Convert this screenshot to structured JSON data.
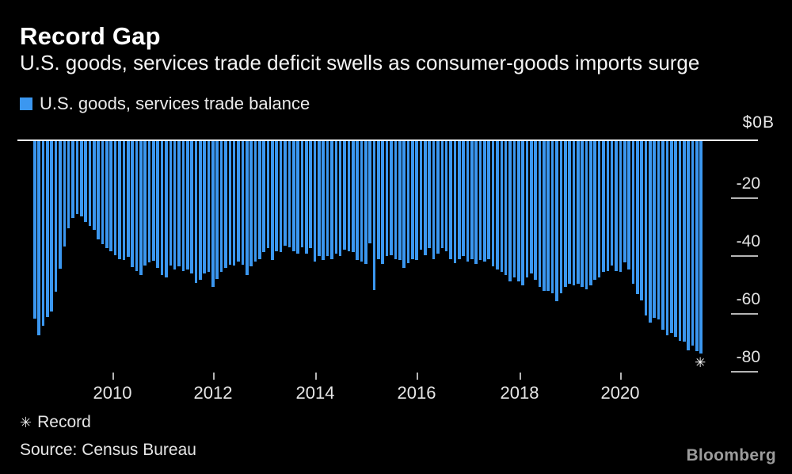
{
  "header": {
    "title": "Record Gap",
    "subtitle": "U.S. goods, services trade deficit swells as consumer-goods imports surge"
  },
  "legend": {
    "label": "U.S. goods, services trade balance",
    "swatch_color": "#3B97F0"
  },
  "chart_data": {
    "type": "bar",
    "title": "Record Gap",
    "series_name": "U.S. goods, services trade balance",
    "unit": "$B",
    "frequency": "monthly",
    "x_start": "2008-07",
    "x_end": "2021-08",
    "values": [
      -61.3,
      -67.2,
      -63.9,
      -60.9,
      -58.9,
      -52.0,
      -44.0,
      -36.5,
      -30.0,
      -26.6,
      -25.3,
      -26.1,
      -27.9,
      -29.3,
      -30.7,
      -33.9,
      -35.7,
      -37.1,
      -38.0,
      -39.5,
      -40.7,
      -41.1,
      -40.0,
      -43.5,
      -44.8,
      -46.2,
      -43.0,
      -41.8,
      -41.4,
      -43.9,
      -46.2,
      -47.1,
      -43.0,
      -44.3,
      -43.4,
      -44.8,
      -44.4,
      -45.7,
      -48.9,
      -47.9,
      -45.7,
      -45.3,
      -50.3,
      -47.6,
      -45.3,
      -43.9,
      -42.6,
      -43.0,
      -41.6,
      -42.6,
      -46.2,
      -43.4,
      -41.6,
      -40.7,
      -38.4,
      -37.1,
      -41.2,
      -38.0,
      -38.4,
      -36.2,
      -36.6,
      -38.0,
      -38.9,
      -36.6,
      -38.9,
      -37.1,
      -41.6,
      -39.8,
      -41.2,
      -39.8,
      -40.7,
      -38.9,
      -39.8,
      -37.5,
      -38.0,
      -38.4,
      -41.2,
      -41.6,
      -42.5,
      -35.4,
      -51.4,
      -40.7,
      -42.5,
      -39.8,
      -39.4,
      -40.7,
      -41.2,
      -43.9,
      -42.1,
      -40.7,
      -41.2,
      -37.5,
      -39.4,
      -37.1,
      -40.7,
      -38.9,
      -37.1,
      -38.0,
      -40.7,
      -42.1,
      -40.7,
      -39.8,
      -41.6,
      -40.7,
      -42.5,
      -41.2,
      -41.6,
      -40.7,
      -43.4,
      -44.3,
      -45.3,
      -46.2,
      -48.4,
      -47.1,
      -48.4,
      -49.9,
      -47.1,
      -45.7,
      -48.0,
      -50.3,
      -51.7,
      -51.7,
      -52.5,
      -55.3,
      -52.5,
      -50.3,
      -49.3,
      -49.8,
      -49.3,
      -50.3,
      -51.2,
      -49.8,
      -48.0,
      -47.1,
      -45.3,
      -44.8,
      -43.0,
      -44.8,
      -45.3,
      -42.0,
      -44.4,
      -49.4,
      -53.0,
      -55.0,
      -60.2,
      -62.6,
      -61.2,
      -61.6,
      -65.3,
      -67.1,
      -66.2,
      -67.6,
      -68.9,
      -69.4,
      -72.2,
      -70.8,
      -72.5,
      -73.3
    ],
    "x_tick_labels": [
      "2010",
      "2012",
      "2014",
      "2016",
      "2018",
      "2020"
    ],
    "y_axis": {
      "top_label": "$0B",
      "tick_labels": [
        "-20",
        "-40",
        "-60",
        "-80"
      ],
      "range": [
        0,
        -80
      ],
      "side": "right",
      "grid": false
    },
    "legend_position": "top-left",
    "annotation": {
      "marker": "✳",
      "label": "Record",
      "applies_to": "last-bar"
    }
  },
  "footnote": {
    "marker": "✳",
    "label": "Record"
  },
  "source": {
    "text": "Source: Census Bureau"
  },
  "branding": {
    "logo_text": "Bloomberg"
  },
  "colors": {
    "background": "#000000",
    "bar": "#3B97F0",
    "zero_line": "#FFFFFF",
    "tick": "#B5B5B5",
    "axis_text": "#E6E6E6",
    "logo": "#9C9C9C"
  }
}
